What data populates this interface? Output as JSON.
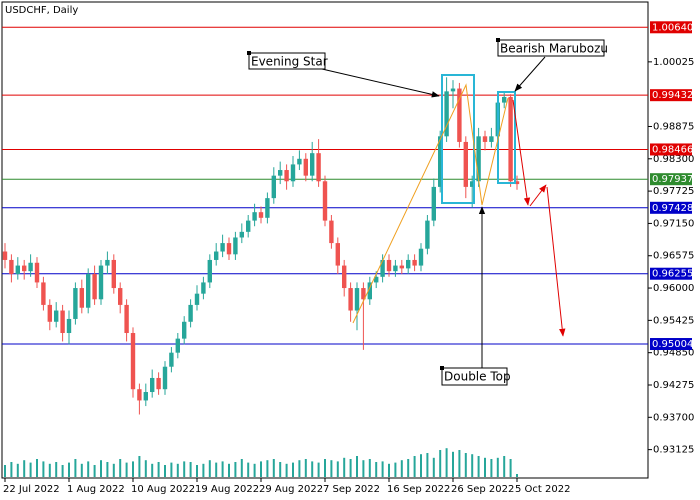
{
  "chart_data": {
    "type": "candlestick",
    "title": "USDCHF, Daily",
    "categories": [
      "22 Jul 2022",
      null,
      null,
      null,
      null,
      null,
      null,
      null,
      null,
      null,
      "1 Aug 2022",
      null,
      null,
      null,
      null,
      null,
      null,
      null,
      null,
      null,
      "10 Aug 2022",
      null,
      null,
      null,
      null,
      null,
      null,
      null,
      null,
      null,
      "19 Aug 2022",
      null,
      null,
      null,
      null,
      null,
      null,
      null,
      null,
      null,
      "29 Aug 2022",
      null,
      null,
      null,
      null,
      null,
      null,
      null,
      null,
      null,
      "7 Sep 2022",
      null,
      null,
      null,
      null,
      null,
      null,
      null,
      null,
      null,
      "16 Sep 2022",
      null,
      null,
      null,
      null,
      null,
      null,
      null,
      null,
      null,
      "26 Sep 2022",
      null,
      null,
      null,
      null,
      null,
      null,
      null,
      null,
      null,
      "5 Oct 2022"
    ],
    "open": [
      0.9665,
      0.965,
      0.9625,
      0.964,
      0.963,
      0.9645,
      0.961,
      0.957,
      0.954,
      0.956,
      0.952,
      0.9545,
      0.96,
      0.9565,
      0.9625,
      0.958,
      0.964,
      0.965,
      0.96,
      0.957,
      0.952,
      0.942,
      0.94,
      0.9415,
      0.944,
      0.942,
      0.946,
      0.9485,
      0.951,
      0.954,
      0.957,
      0.959,
      0.961,
      0.965,
      0.9665,
      0.968,
      0.966,
      0.969,
      0.97,
      0.972,
      0.9735,
      0.9725,
      0.976,
      0.98,
      0.981,
      0.979,
      0.982,
      0.983,
      0.98,
      0.984,
      0.979,
      0.972,
      0.968,
      0.964,
      0.96,
      0.956,
      0.96,
      0.958,
      0.961,
      0.962,
      0.965,
      0.963,
      0.964,
      0.9635,
      0.965,
      0.964,
      0.967,
      0.972,
      0.978,
      0.987,
      0.995,
      0.9955,
      0.986,
      0.978,
      0.979,
      0.987,
      0.986,
      0.987,
      0.993,
      0.994,
      0.979
    ],
    "high": [
      0.968,
      0.966,
      0.9655,
      0.965,
      0.966,
      0.9655,
      0.962,
      0.958,
      0.9575,
      0.957,
      0.956,
      0.961,
      0.9615,
      0.9635,
      0.964,
      0.965,
      0.9665,
      0.966,
      0.961,
      0.958,
      0.953,
      0.943,
      0.943,
      0.9455,
      0.945,
      0.947,
      0.9495,
      0.952,
      0.955,
      0.958,
      0.9605,
      0.962,
      0.966,
      0.968,
      0.9695,
      0.969,
      0.97,
      0.9715,
      0.973,
      0.975,
      0.9745,
      0.977,
      0.9815,
      0.9825,
      0.982,
      0.9835,
      0.9845,
      0.984,
      0.986,
      0.9865,
      0.98,
      0.973,
      0.969,
      0.965,
      0.961,
      0.961,
      0.961,
      0.962,
      0.963,
      0.966,
      0.966,
      0.965,
      0.965,
      0.966,
      0.966,
      0.968,
      0.973,
      0.9795,
      0.988,
      0.9975,
      0.997,
      0.9965,
      0.987,
      0.98,
      0.9885,
      0.988,
      0.9885,
      0.994,
      0.9948,
      0.9945,
      0.98
    ],
    "low": [
      0.9635,
      0.961,
      0.9615,
      0.9615,
      0.962,
      0.96,
      0.956,
      0.9525,
      0.953,
      0.9505,
      0.95,
      0.9535,
      0.9555,
      0.9555,
      0.957,
      0.957,
      0.9625,
      0.959,
      0.9555,
      0.9505,
      0.9405,
      0.9375,
      0.939,
      0.9405,
      0.941,
      0.941,
      0.945,
      0.9475,
      0.95,
      0.953,
      0.956,
      0.958,
      0.96,
      0.964,
      0.9655,
      0.965,
      0.965,
      0.968,
      0.969,
      0.971,
      0.9715,
      0.9715,
      0.975,
      0.9785,
      0.9775,
      0.978,
      0.981,
      0.979,
      0.979,
      0.978,
      0.971,
      0.967,
      0.9625,
      0.9585,
      0.954,
      0.9525,
      0.949,
      0.957,
      0.96,
      0.961,
      0.962,
      0.962,
      0.9625,
      0.9625,
      0.963,
      0.963,
      0.966,
      0.971,
      0.977,
      0.986,
      0.992,
      0.985,
      0.976,
      0.9743,
      0.978,
      0.9845,
      0.985,
      0.986,
      0.992,
      0.978,
      0.9775
    ],
    "close": [
      0.965,
      0.9625,
      0.964,
      0.963,
      0.9645,
      0.961,
      0.957,
      0.954,
      0.956,
      0.952,
      0.9545,
      0.96,
      0.9565,
      0.9625,
      0.958,
      0.964,
      0.965,
      0.96,
      0.957,
      0.952,
      0.942,
      0.94,
      0.9415,
      0.944,
      0.942,
      0.946,
      0.9485,
      0.951,
      0.954,
      0.957,
      0.959,
      0.961,
      0.965,
      0.9665,
      0.968,
      0.966,
      0.969,
      0.97,
      0.972,
      0.9735,
      0.9725,
      0.976,
      0.98,
      0.981,
      0.979,
      0.982,
      0.983,
      0.98,
      0.984,
      0.979,
      0.972,
      0.968,
      0.964,
      0.96,
      0.956,
      0.96,
      0.958,
      0.961,
      0.962,
      0.965,
      0.963,
      0.964,
      0.9635,
      0.965,
      0.964,
      0.967,
      0.972,
      0.978,
      0.987,
      0.995,
      0.9955,
      0.986,
      0.978,
      0.979,
      0.987,
      0.986,
      0.987,
      0.993,
      0.994,
      0.979,
      0.9785
    ],
    "volume": [
      20,
      25,
      22,
      28,
      24,
      30,
      26,
      22,
      25,
      20,
      24,
      30,
      22,
      26,
      20,
      28,
      25,
      22,
      30,
      24,
      26,
      35,
      28,
      22,
      25,
      20,
      24,
      22,
      26,
      25,
      20,
      22,
      28,
      24,
      26,
      22,
      25,
      30,
      24,
      22,
      26,
      28,
      30,
      25,
      22,
      24,
      28,
      30,
      26,
      24,
      30,
      28,
      26,
      32,
      30,
      35,
      28,
      30,
      25,
      26,
      22,
      24,
      28,
      30,
      35,
      38,
      40,
      32,
      45,
      48,
      42,
      45,
      40,
      38,
      35,
      32,
      30,
      32,
      35,
      30,
      5
    ],
    "up_color": "#26a69a",
    "down_color": "#ef5350",
    "ylim": [
      0.9262,
      1.0109
    ],
    "vlim": [
      0,
      100
    ],
    "yticks": [
      1.00025,
      0.98875,
      {
        "value": 0.983,
        "label": "0.98300"
      },
      0.97725,
      {
        "value": 0.9715,
        "label": "0.97150"
      },
      0.96575,
      {
        "value": 0.96,
        "label": "0.96000"
      },
      0.95425,
      {
        "value": 0.9485,
        "label": "0.94850"
      },
      0.94275,
      {
        "value": 0.937,
        "label": "0.93700"
      },
      0.93125
    ],
    "levels": [
      {
        "value": 1.0064,
        "label": "1.00640",
        "color": "#e00000"
      },
      {
        "value": 0.99432,
        "color": "#e00000"
      },
      {
        "value": 0.98466,
        "color": "#e00000"
      },
      {
        "value": 0.97937,
        "color": "#2e8b2e"
      },
      {
        "value": 0.97428,
        "color": "#0000c8"
      },
      {
        "value": 0.96255,
        "color": "#0000c8"
      },
      {
        "value": 0.95004,
        "color": "#0000c8"
      }
    ],
    "annotations": {
      "evening_star": "Evening Star",
      "bearish_marubozu": "Bearish Marubozu",
      "double_top": "Double Top"
    }
  }
}
